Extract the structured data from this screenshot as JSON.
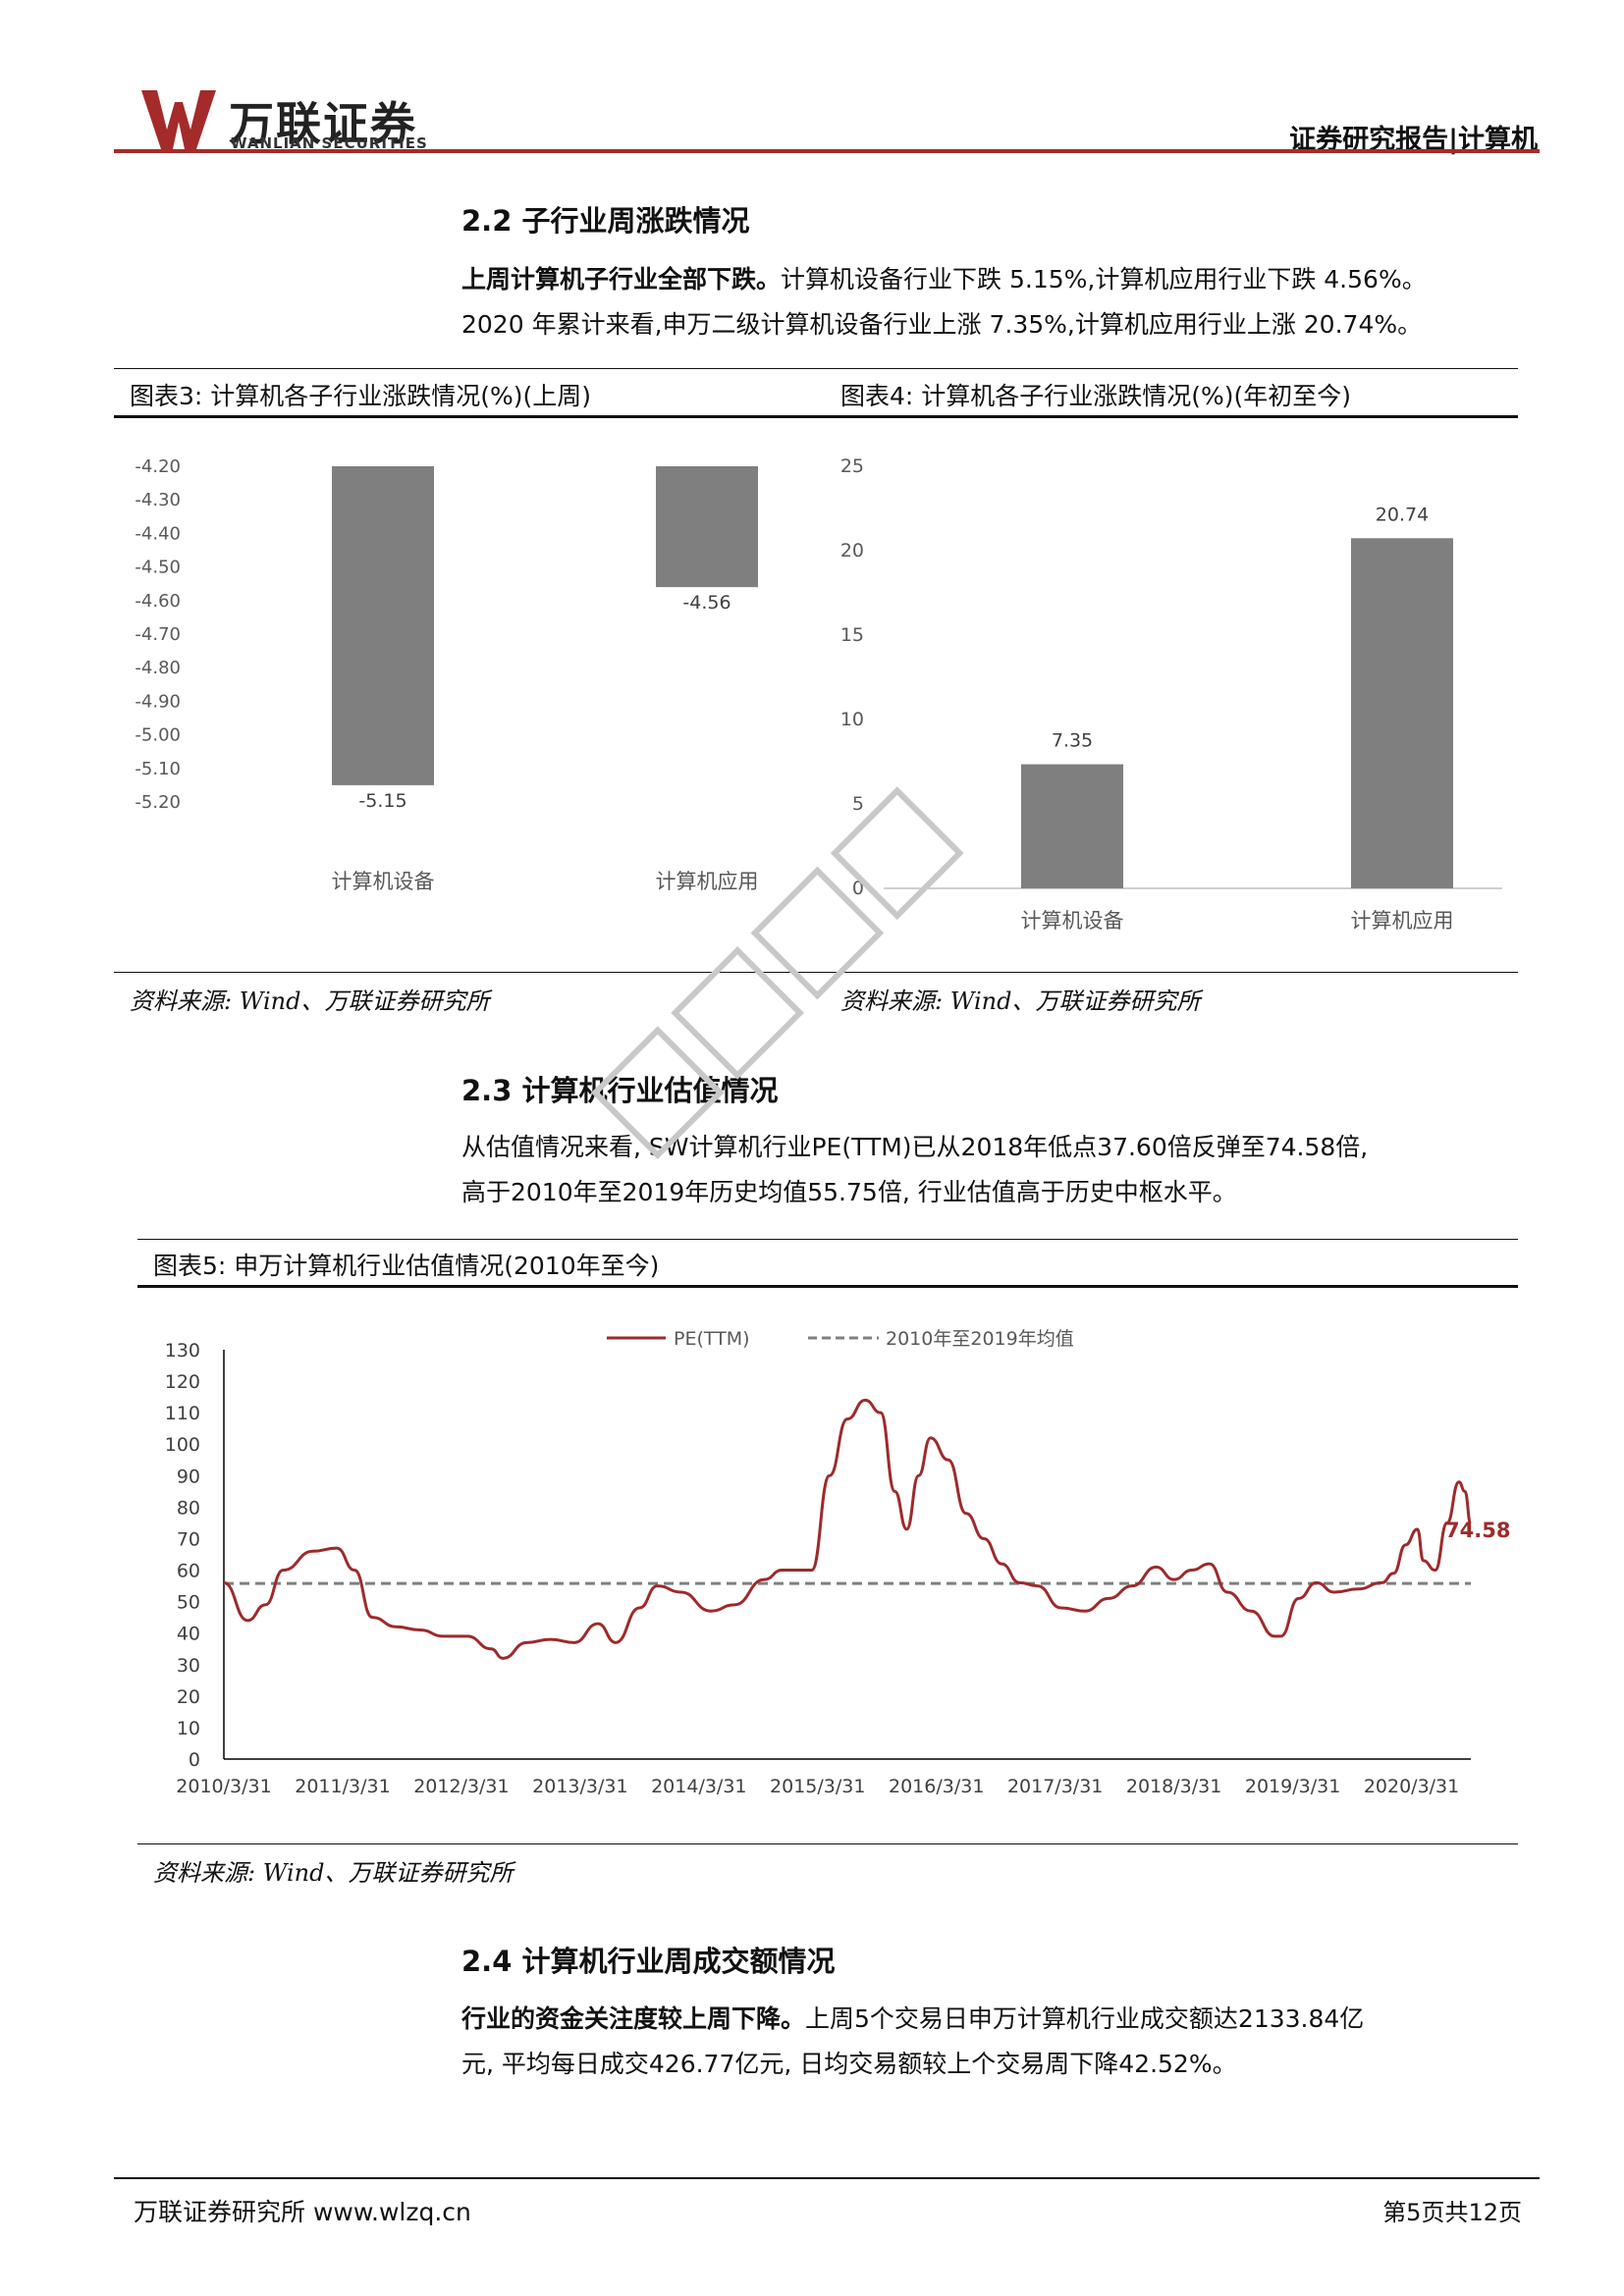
{
  "header": {
    "logo_cn": "万联证券",
    "logo_en": "WANLIAN SECURITIES",
    "report_type": "证券研究报告|计算机"
  },
  "section_2_2": {
    "heading": "2.2 子行业周涨跌情况",
    "lead_bold": "上周计算机子行业全部下跌。",
    "lead_rest": "计算机设备行业下跌 5.15%,计算机应用行业下跌 4.56%。",
    "line2": "2020 年累计来看,申万二级计算机设备行业上涨 7.35%,计算机应用行业上涨 20.74%。"
  },
  "figure3": {
    "title": "图表3: 计算机各子行业涨跌情况(%)(上周)",
    "source": "资料来源: Wind、万联证券研究所"
  },
  "figure4": {
    "title": "图表4: 计算机各子行业涨跌情况(%)(年初至今)",
    "source": "资料来源: Wind、万联证券研究所"
  },
  "section_2_3": {
    "heading": "2.3 计算机行业估值情况",
    "line1": "从估值情况来看, SW计算机行业PE(TTM)已从2018年低点37.60倍反弹至74.58倍,",
    "line2": "高于2010年至2019年历史均值55.75倍, 行业估值高于历史中枢水平。"
  },
  "figure5": {
    "title": "图表5: 申万计算机行业估值情况(2010年至今)",
    "source": "资料来源: Wind、万联证券研究所",
    "end_label": "74.58"
  },
  "section_2_4": {
    "heading": "2.4 计算机行业周成交额情况",
    "lead_bold": "行业的资金关注度较上周下降。",
    "lead_rest": "上周5个交易日申万计算机行业成交额达2133.84亿",
    "line2": "元, 平均每日成交426.77亿元, 日均交易额较上个交易周下降42.52%。"
  },
  "footer": {
    "left": "万联证券研究所 www.wlzq.cn",
    "right": "第5页共12页"
  },
  "colors": {
    "brand_red": "#a52a2a",
    "bar_gray": "#7f7f7f",
    "pe_line": "#9e2a2b",
    "mean_line": "#7f7f7f"
  },
  "chart_data": [
    {
      "type": "bar",
      "categories": [
        "计算机设备",
        "计算机应用"
      ],
      "values": [
        -5.15,
        -4.56
      ],
      "data_labels": [
        "-5.15",
        "-4.56"
      ],
      "yticks": [
        "-4.20",
        "-4.30",
        "-4.40",
        "-4.50",
        "-4.60",
        "-4.70",
        "-4.80",
        "-4.90",
        "-5.00",
        "-5.10",
        "-5.20"
      ],
      "ylim": [
        -5.2,
        -4.2
      ],
      "grid": false
    },
    {
      "type": "bar",
      "categories": [
        "计算机设备",
        "计算机应用"
      ],
      "values": [
        7.35,
        20.74
      ],
      "data_labels": [
        "7.35",
        "20.74"
      ],
      "yticks": [
        "0",
        "5",
        "10",
        "15",
        "20",
        "25"
      ],
      "ylim": [
        0,
        25
      ],
      "grid": false
    },
    {
      "type": "line",
      "legend": [
        "PE(TTM)",
        "2010年至2019年均值"
      ],
      "legend_position": "top-center",
      "xticks": [
        "2010/3/31",
        "2011/3/31",
        "2012/3/31",
        "2013/3/31",
        "2014/3/31",
        "2015/3/31",
        "2016/3/31",
        "2017/3/31",
        "2018/3/31",
        "2019/3/31",
        "2020/3/31"
      ],
      "yticks": [
        "0",
        "10",
        "20",
        "30",
        "40",
        "50",
        "60",
        "70",
        "80",
        "90",
        "100",
        "110",
        "120",
        "130"
      ],
      "ylim": [
        0,
        130
      ],
      "xlim": [
        2010.25,
        2020.75
      ],
      "mean_value": 55.75,
      "grid": false,
      "series": [
        {
          "name": "PE(TTM)",
          "points": [
            [
              2010.25,
              56
            ],
            [
              2010.45,
              44
            ],
            [
              2010.6,
              49
            ],
            [
              2010.75,
              60
            ],
            [
              2011.0,
              66
            ],
            [
              2011.2,
              67
            ],
            [
              2011.35,
              60
            ],
            [
              2011.5,
              45
            ],
            [
              2011.7,
              42
            ],
            [
              2011.9,
              41
            ],
            [
              2012.1,
              39
            ],
            [
              2012.3,
              39
            ],
            [
              2012.5,
              35
            ],
            [
              2012.6,
              32
            ],
            [
              2012.8,
              37
            ],
            [
              2013.0,
              38
            ],
            [
              2013.2,
              37
            ],
            [
              2013.4,
              43
            ],
            [
              2013.55,
              37
            ],
            [
              2013.75,
              48
            ],
            [
              2013.9,
              55
            ],
            [
              2014.1,
              53
            ],
            [
              2014.35,
              47
            ],
            [
              2014.55,
              49
            ],
            [
              2014.8,
              57
            ],
            [
              2014.95,
              60
            ],
            [
              2015.2,
              60
            ],
            [
              2015.35,
              90
            ],
            [
              2015.5,
              108
            ],
            [
              2015.65,
              114
            ],
            [
              2015.78,
              110
            ],
            [
              2015.9,
              85
            ],
            [
              2016.0,
              73
            ],
            [
              2016.1,
              90
            ],
            [
              2016.2,
              102
            ],
            [
              2016.35,
              95
            ],
            [
              2016.5,
              78
            ],
            [
              2016.65,
              70
            ],
            [
              2016.8,
              62
            ],
            [
              2016.95,
              56
            ],
            [
              2017.1,
              55
            ],
            [
              2017.3,
              48
            ],
            [
              2017.5,
              47
            ],
            [
              2017.7,
              51
            ],
            [
              2017.9,
              55
            ],
            [
              2018.1,
              61
            ],
            [
              2018.25,
              57
            ],
            [
              2018.4,
              60
            ],
            [
              2018.55,
              62
            ],
            [
              2018.7,
              53
            ],
            [
              2018.9,
              47
            ],
            [
              2019.1,
              39
            ],
            [
              2019.15,
              39
            ],
            [
              2019.3,
              51
            ],
            [
              2019.45,
              56
            ],
            [
              2019.6,
              53
            ],
            [
              2019.8,
              54
            ],
            [
              2020.0,
              56
            ],
            [
              2020.1,
              59
            ],
            [
              2020.2,
              68
            ],
            [
              2020.3,
              73
            ],
            [
              2020.35,
              63
            ],
            [
              2020.45,
              60
            ],
            [
              2020.55,
              75
            ],
            [
              2020.65,
              88
            ],
            [
              2020.7,
              85
            ],
            [
              2020.75,
              74.58
            ]
          ]
        }
      ]
    }
  ]
}
